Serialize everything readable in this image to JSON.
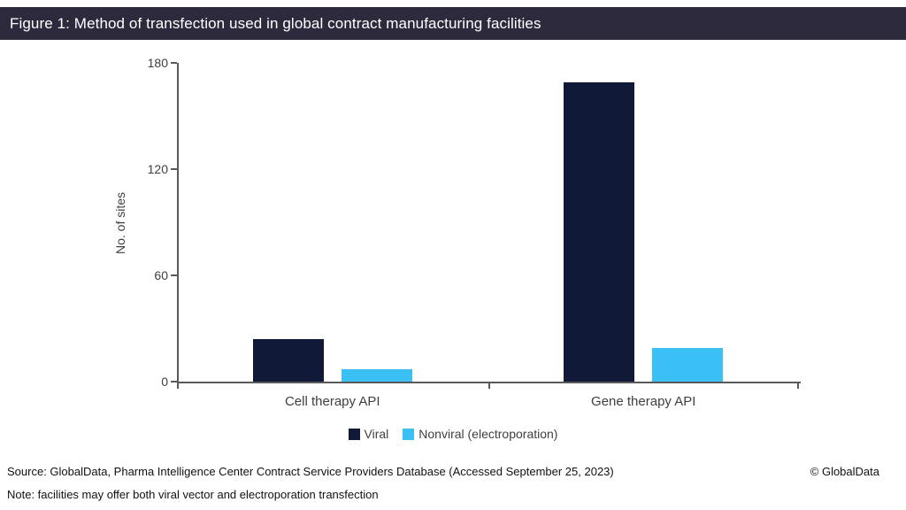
{
  "header": {
    "title": "Figure 1: Method of transfection used in global contract manufacturing facilities",
    "bg_color": "#2e2a3e",
    "text_color": "#ffffff"
  },
  "chart_data": {
    "type": "bar",
    "title": "",
    "categories": [
      "Cell therapy API",
      "Gene therapy API"
    ],
    "series": [
      {
        "name": "Viral",
        "color": "#101a38",
        "values": [
          24,
          169
        ]
      },
      {
        "name": "Nonviral (electroporation)",
        "color": "#3bc0f5",
        "values": [
          7,
          19
        ]
      }
    ],
    "ylabel": "No. of sites",
    "xlabel": "",
    "yticks": [
      0,
      60,
      120,
      180
    ],
    "ylim": [
      0,
      180
    ],
    "grid": false,
    "legend_position": "bottom",
    "axis_color": "#595959",
    "tick_text_color": "#404040"
  },
  "footer": {
    "source": "Source: GlobalData, Pharma Intelligence Center Contract Service Providers Database (Accessed September 25, 2023)",
    "copyright": "© GlobalData",
    "note": "Note: facilities may offer both viral vector and electroporation transfection"
  }
}
